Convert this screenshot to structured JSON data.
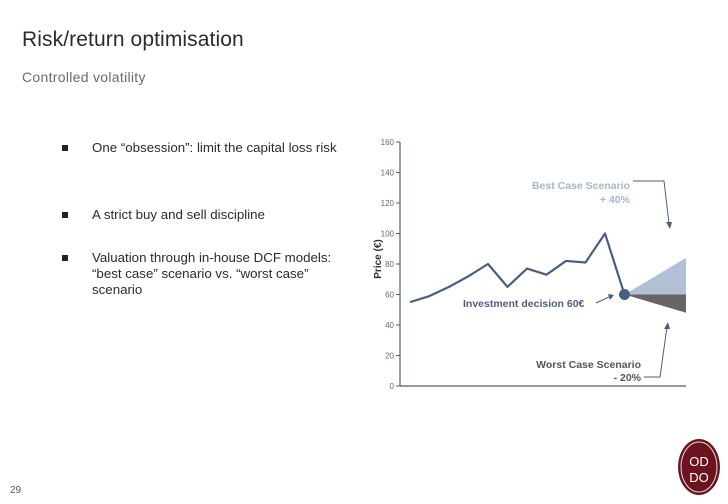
{
  "slide": {
    "title": "Risk/return optimisation",
    "subtitle": "Controlled volatility",
    "number": "29"
  },
  "bullets": [
    {
      "text": "One “obsession”: limit the capital loss risk"
    },
    {
      "text": "A strict buy and sell discipline"
    },
    {
      "text": "Valuation through in-house DCF models: “best case” scenario vs. “worst case” scenario"
    }
  ],
  "logo": {
    "letters": [
      "OD",
      "DO"
    ]
  },
  "chart_data": {
    "type": "line",
    "ylabel": "Price (€)",
    "ylim": [
      0,
      160
    ],
    "yticks": [
      0,
      20,
      40,
      60,
      80,
      100,
      120,
      140,
      160
    ],
    "series": [
      {
        "values": [
          55,
          59,
          65,
          72,
          80,
          65,
          77,
          73,
          82,
          81,
          100,
          60
        ]
      }
    ],
    "annotations": {
      "best_case": {
        "line1": "Best Case Scenario",
        "line2": "+ 40%"
      },
      "worst_case": {
        "line1": "Worst Case Scenario",
        "line2": "- 20%"
      },
      "investment": {
        "label": "Investment decision 60€"
      }
    },
    "colors": {
      "line": "#4a5f80",
      "best_fill": "#b1c0d5",
      "worst_fill": "#666666",
      "best_text": "#a7b6cb",
      "axis": "#4a5f80"
    }
  }
}
